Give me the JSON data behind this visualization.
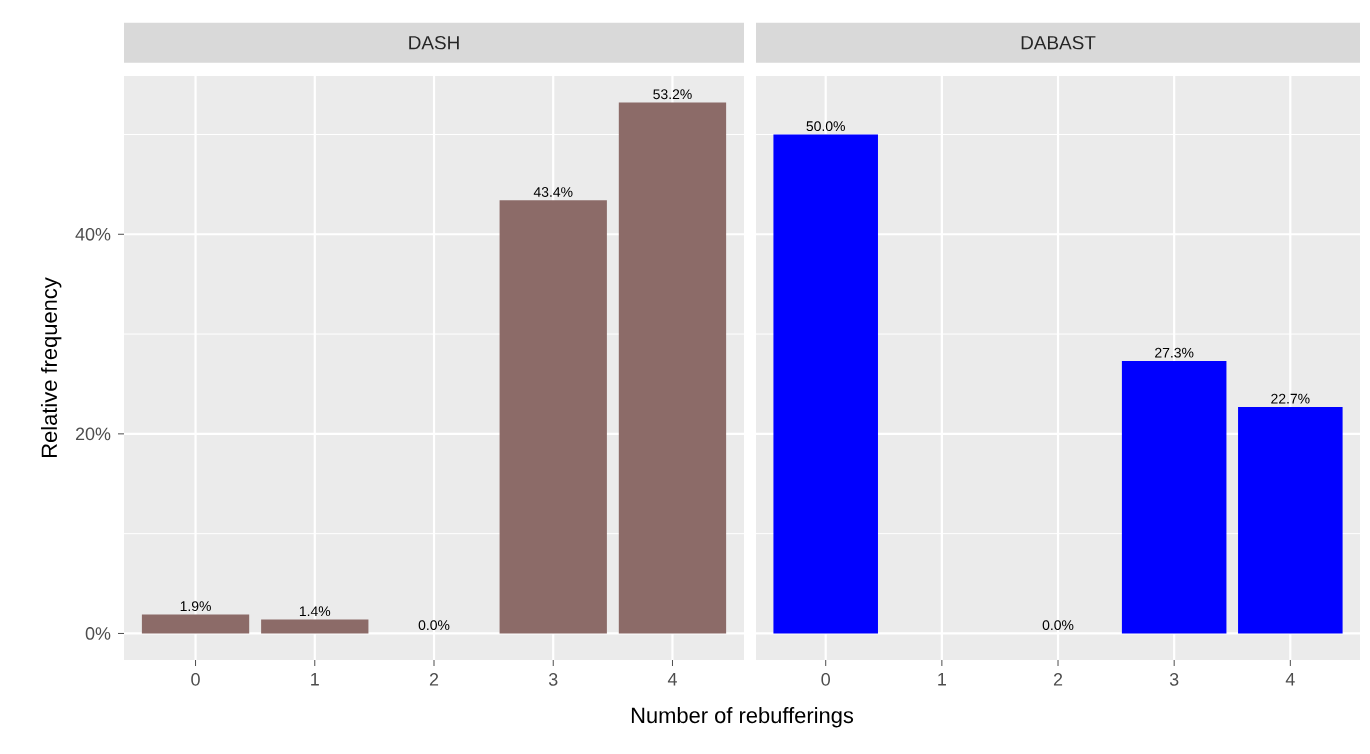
{
  "chart_data": [
    {
      "type": "bar",
      "title": "DASH",
      "xlabel": "Number of rebufferings",
      "ylabel": "Relative frequency",
      "categories": [
        "0",
        "1",
        "2",
        "3",
        "4"
      ],
      "values": [
        1.9,
        1.4,
        0.0,
        43.4,
        53.2
      ],
      "color": "#8c6b68",
      "value_labels": [
        "1.9%",
        "1.4%",
        "0.0%",
        "43.4%",
        "53.2%"
      ],
      "ylim": [
        -2.66,
        55.86
      ],
      "yticks": [
        {
          "value": 0,
          "label": "0%"
        },
        {
          "value": 20,
          "label": "20%"
        },
        {
          "value": 40,
          "label": "40%"
        }
      ],
      "grid": true
    },
    {
      "type": "bar",
      "title": "DABAST",
      "categories": [
        "0",
        "1",
        "2",
        "3",
        "4"
      ],
      "values": [
        50.0,
        null,
        0.0,
        27.3,
        22.7
      ],
      "color": "#0000ff",
      "value_labels": [
        "50.0%",
        null,
        "0.0%",
        "27.3%",
        "22.7%"
      ],
      "ylim": [
        -2.66,
        55.86
      ],
      "yticks": [
        0,
        20,
        40
      ],
      "grid": true,
      "tick_labels": "x"
    }
  ]
}
